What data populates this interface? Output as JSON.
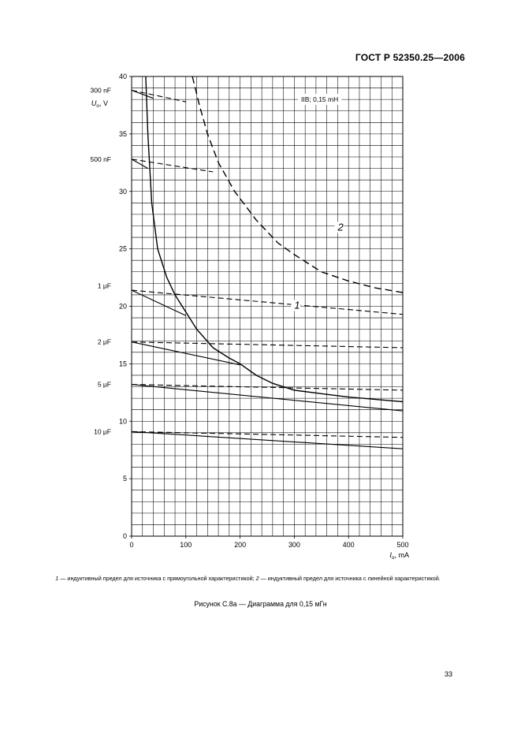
{
  "header": {
    "standard": "ГОСТ Р 52350.25—2006"
  },
  "caption": {
    "part1_num": "1",
    "part1_text": " — индуктивный предел для источника с прямоугольной характеристикой; ",
    "part2_num": "2",
    "part2_text": " — индуктивный предел для источника с линейной характеристикой."
  },
  "figure_title": "Рисунок С.8а — Диаграмма для 0,15 мГн",
  "page_number": "33",
  "chart_data": {
    "type": "line",
    "title": "",
    "annotation": "IIB; 0,15 mH",
    "xlabel": {
      "symbol": "I",
      "sub": "o",
      "unit": ", mA"
    },
    "ylabel": {
      "symbol": "U",
      "sub": "o",
      "unit": ", V"
    },
    "xlim": [
      0,
      500
    ],
    "ylim": [
      0,
      40
    ],
    "x_ticks": [
      0,
      100,
      200,
      300,
      400,
      500
    ],
    "y_ticks": [
      0,
      5,
      10,
      15,
      20,
      25,
      30,
      35,
      40
    ],
    "grid": true,
    "curve_labels": [
      "1",
      "2"
    ],
    "series": [
      {
        "name": "1",
        "style": "solid",
        "points": [
          [
            26,
            40
          ],
          [
            30,
            35
          ],
          [
            37,
            29
          ],
          [
            48,
            25
          ],
          [
            65,
            22.5
          ],
          [
            80,
            21
          ],
          [
            100,
            19.5
          ],
          [
            120,
            18
          ],
          [
            150,
            16.4
          ],
          [
            180,
            15.5
          ],
          [
            200,
            15
          ],
          [
            230,
            14
          ],
          [
            260,
            13.3
          ],
          [
            300,
            12.7
          ],
          [
            350,
            12.4
          ],
          [
            400,
            12.1
          ],
          [
            450,
            11.9
          ],
          [
            500,
            11.7
          ]
        ]
      },
      {
        "name": "2",
        "style": "dashed",
        "points": [
          [
            112,
            40
          ],
          [
            125,
            37.5
          ],
          [
            140,
            35
          ],
          [
            160,
            32.5
          ],
          [
            190,
            30
          ],
          [
            230,
            27.5
          ],
          [
            270,
            25.5
          ],
          [
            300,
            24.5
          ],
          [
            350,
            23
          ],
          [
            400,
            22.2
          ],
          [
            450,
            21.6
          ],
          [
            500,
            21.2
          ]
        ]
      },
      {
        "label": "300 nF",
        "style": "dashed",
        "points": [
          [
            0,
            38.8
          ],
          [
            100,
            37.8
          ]
        ]
      },
      {
        "label": "300 nF",
        "style": "solid",
        "points": [
          [
            0,
            38.8
          ],
          [
            40,
            38.1
          ]
        ]
      },
      {
        "label": "500 nF",
        "style": "dashed",
        "points": [
          [
            0,
            32.8
          ],
          [
            150,
            31.7
          ]
        ]
      },
      {
        "label": "500 nF",
        "style": "solid",
        "points": [
          [
            0,
            32.8
          ],
          [
            30,
            32
          ]
        ]
      },
      {
        "label": "1 μF",
        "style": "dashed",
        "points": [
          [
            0,
            21.4
          ],
          [
            500,
            19.3
          ]
        ]
      },
      {
        "label": "1 μF",
        "style": "solid",
        "points": [
          [
            0,
            21.4
          ],
          [
            100,
            19.2
          ]
        ]
      },
      {
        "label": "2 μF",
        "style": "dashed",
        "points": [
          [
            0,
            16.9
          ],
          [
            500,
            16.4
          ]
        ]
      },
      {
        "label": "2 μF",
        "style": "solid",
        "points": [
          [
            0,
            16.9
          ],
          [
            200,
            14.9
          ]
        ]
      },
      {
        "label": "5 μF",
        "style": "dashed",
        "points": [
          [
            0,
            13.2
          ],
          [
            500,
            12.7
          ]
        ]
      },
      {
        "label": "5 μF",
        "style": "solid",
        "points": [
          [
            0,
            13.2
          ],
          [
            500,
            10.9
          ]
        ]
      },
      {
        "label": "10 μF",
        "style": "dashed",
        "points": [
          [
            0,
            9.1
          ],
          [
            500,
            8.6
          ]
        ]
      },
      {
        "label": "10 μF",
        "style": "solid",
        "points": [
          [
            0,
            9.1
          ],
          [
            500,
            7.6
          ]
        ]
      }
    ],
    "capacitor_labels": [
      {
        "text": "300 nF",
        "y": 38.8
      },
      {
        "text": "500 nF",
        "y": 32.8
      },
      {
        "text": "1 μF",
        "y": 21.8
      },
      {
        "text": "2 μF",
        "y": 16.9
      },
      {
        "text": "5 μF",
        "y": 13.2
      },
      {
        "text": "10 μF",
        "y": 9.1
      }
    ]
  }
}
